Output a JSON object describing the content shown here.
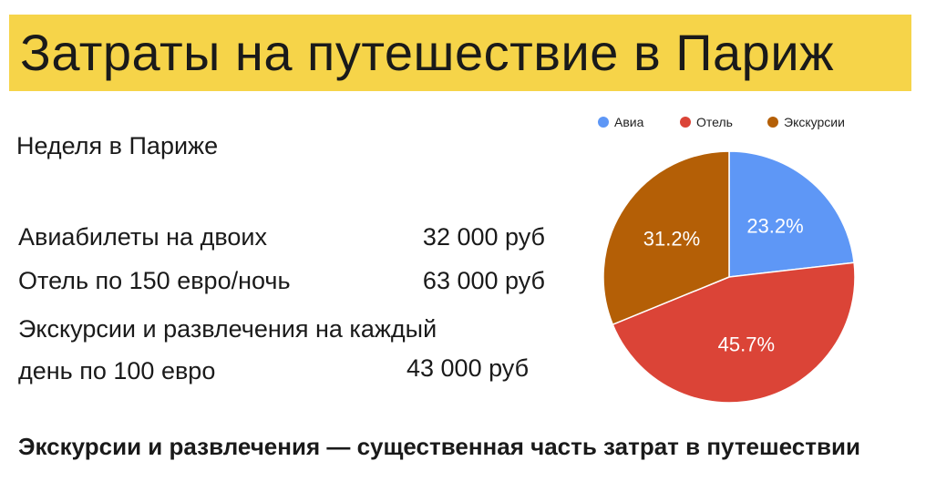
{
  "title": "Затраты на путешествие в Париж",
  "subtitle": "Неделя в Париже",
  "costs": [
    {
      "label": "Авиабилеты на двоих",
      "amount": "32 000 руб"
    },
    {
      "label": "Отель по 150 евро/ночь",
      "amount": "63 000 руб"
    },
    {
      "label_line1": "Экскурсии и развлечения на каждый",
      "label_line2": "день по 100 евро",
      "amount": "43 000 руб"
    }
  ],
  "conclusion": "Экскурсии и развлечения — существенная часть затрат в путешествии",
  "chart_data": {
    "type": "pie",
    "legend_position": "top",
    "slices": [
      {
        "name": "Авиа",
        "value": 23.2,
        "label": "23.2%",
        "color": "#5e97f6"
      },
      {
        "name": "Отель",
        "value": 45.7,
        "label": "45.7%",
        "color": "#db4437"
      },
      {
        "name": "Экскурсии",
        "value": 31.2,
        "label": "31.2%",
        "color": "#b45f06"
      }
    ]
  }
}
